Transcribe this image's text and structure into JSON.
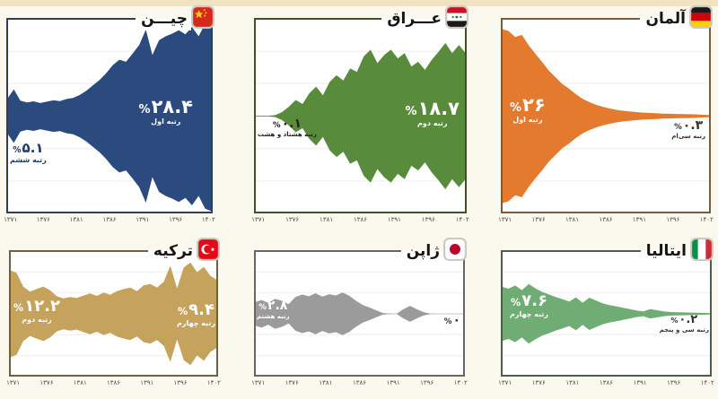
{
  "page": {
    "background_color": "#fbf8ee",
    "top_band_color": "#f1e3c2",
    "language": "fa",
    "percent_sign_note": "percent sign shown left of Persian digits"
  },
  "percent_sign": "%",
  "x_axis": {
    "tick_labels": [
      "۱۳۷۱",
      "۱۳۷۶",
      "۱۳۸۱",
      "۱۳۸۶",
      "۱۳۹۱",
      "۱۳۹۶",
      "۱۴۰۲"
    ],
    "tick_years": [
      1371,
      1376,
      1381,
      1386,
      1391,
      1396,
      1402
    ]
  },
  "chart_data": [
    {
      "id": "china",
      "type": "streamgraph",
      "title": "چیـــن",
      "color": "#2b4a7d",
      "border_color": "#333c55",
      "label_dark_color": "#1d3a6b",
      "year_start": 1371,
      "year_end": 1402,
      "scale_max_percent": 29,
      "values": [
        5.1,
        8.0,
        4.6,
        4.1,
        4.4,
        3.9,
        4.3,
        4.7,
        4.5,
        5.1,
        5.4,
        6.3,
        7.6,
        9.2,
        10.8,
        12.8,
        15.2,
        16.8,
        16.2,
        18.6,
        21.2,
        25.8,
        18.2,
        22.6,
        23.8,
        24.6,
        25.6,
        24.4,
        26.6,
        23.8,
        27.6,
        28.4
      ],
      "left_label": {
        "value": "۵.۱",
        "rank": "رتبه ششم",
        "value_pct": 5.1
      },
      "right_label": {
        "value": "۲۸.۴",
        "rank": "رتبه اول",
        "value_pct": 28.4
      }
    },
    {
      "id": "iraq",
      "type": "streamgraph",
      "title": "عـــراق",
      "color": "#588c3c",
      "border_color": "#3c5226",
      "label_dark_color": "#222222",
      "year_start": 1371,
      "year_end": 1402,
      "scale_max_percent": 29,
      "values": [
        0.1,
        0.1,
        0.1,
        0.3,
        1.2,
        2.8,
        4.8,
        3.6,
        6.8,
        8.8,
        6.2,
        10.2,
        12.2,
        10.6,
        14.2,
        13.2,
        17.8,
        19.8,
        15.8,
        18.2,
        19.8,
        17.2,
        18.8,
        14.8,
        16.2,
        13.8,
        16.8,
        19.2,
        21.8,
        18.8,
        21.2,
        18.7
      ],
      "left_label": {
        "value": "۰.۱",
        "rank": "رتبه هشتاد و هشت",
        "value_pct": 0.1
      },
      "right_label": {
        "value": "۱۸.۷",
        "rank": "رتبه دوم",
        "value_pct": 18.7
      }
    },
    {
      "id": "germany",
      "type": "streamgraph",
      "title": "آلمان",
      "color": "#e47a2e",
      "border_color": "#7d5a38",
      "label_dark_color": "#333333",
      "year_start": 1371,
      "year_end": 1402,
      "scale_max_percent": 29,
      "values": [
        26,
        25.4,
        23.6,
        24.2,
        21.2,
        18.6,
        16.2,
        13.6,
        11.6,
        9.6,
        8.2,
        6.6,
        5.2,
        4.2,
        3.4,
        2.8,
        2.3,
        1.9,
        1.6,
        1.4,
        1.2,
        1.05,
        0.95,
        0.85,
        0.75,
        0.7,
        0.65,
        0.6,
        0.55,
        0.5,
        0.4,
        0.3
      ],
      "left_label": {
        "value": "۲۶",
        "rank": "رتبه اول",
        "value_pct": 26
      },
      "right_label": {
        "value": "۰.۳",
        "rank": "رتبه سی‌ام",
        "value_pct": 0.3
      }
    },
    {
      "id": "turkey",
      "type": "streamgraph",
      "title": "ترکیه",
      "color": "#c6a35c",
      "border_color": "#6b6144",
      "label_dark_color": "#5c4f2c",
      "year_start": 1371,
      "year_end": 1402,
      "scale_max_percent": 17.5,
      "values": [
        12.2,
        11.4,
        7.6,
        6.2,
        6.9,
        7.6,
        6.6,
        4.9,
        4.3,
        4.7,
        4.4,
        5.1,
        5.7,
        5.0,
        5.9,
        5.3,
        6.3,
        6.9,
        7.3,
        6.3,
        7.9,
        8.3,
        7.3,
        8.9,
        13.4,
        7.1,
        12.9,
        14.3,
        11.6,
        13.1,
        10.6,
        9.4
      ],
      "left_label": {
        "value": "۱۲.۲",
        "rank": "رتبه دوم",
        "value_pct": 12.2
      },
      "right_label": {
        "value": "۹.۴",
        "rank": "رتبه چهارم",
        "value_pct": 9.4
      }
    },
    {
      "id": "japan",
      "type": "streamgraph",
      "title": "ژاپن",
      "color": "#9b9b9b",
      "border_color": "#666666",
      "label_dark_color": "#333333",
      "year_start": 1371,
      "year_end": 1402,
      "scale_max_percent": 15,
      "values": [
        2.8,
        3.3,
        2.6,
        3.6,
        3.1,
        2.3,
        4.0,
        4.6,
        4.2,
        4.9,
        4.1,
        4.7,
        4.4,
        5.1,
        4.3,
        3.1,
        2.1,
        1.5,
        0.8,
        0.2,
        0.05,
        0,
        1.1,
        1.9,
        1.1,
        0.4,
        0.05,
        0,
        0,
        0,
        0,
        0
      ],
      "left_label": {
        "value": "۲.۸",
        "rank": "رتبه هشتم",
        "value_pct": 2.8
      },
      "right_label": {
        "value": "۰",
        "rank": "",
        "value_pct": 0
      }
    },
    {
      "id": "italy",
      "type": "streamgraph",
      "title": "ایتالیا",
      "color": "#6fad74",
      "border_color": "#4e5c52",
      "label_dark_color": "#333333",
      "year_start": 1371,
      "year_end": 1402,
      "scale_max_percent": 17.5,
      "values": [
        7.6,
        7.0,
        7.9,
        6.6,
        8.3,
        7.1,
        6.1,
        5.4,
        4.7,
        4.1,
        3.4,
        4.6,
        3.1,
        4.5,
        3.7,
        2.9,
        2.4,
        2.1,
        1.7,
        1.3,
        0.9,
        0.7,
        1.3,
        1.0,
        0.7,
        0.5,
        0.45,
        0.4,
        0.35,
        0.3,
        0.25,
        0.2
      ],
      "left_label": {
        "value": "۷.۶",
        "rank": "رتبه چهارم",
        "value_pct": 7.6
      },
      "right_label": {
        "value": "۰.۲",
        "rank": "رتبه سی و پنجم",
        "value_pct": 0.2
      }
    }
  ]
}
